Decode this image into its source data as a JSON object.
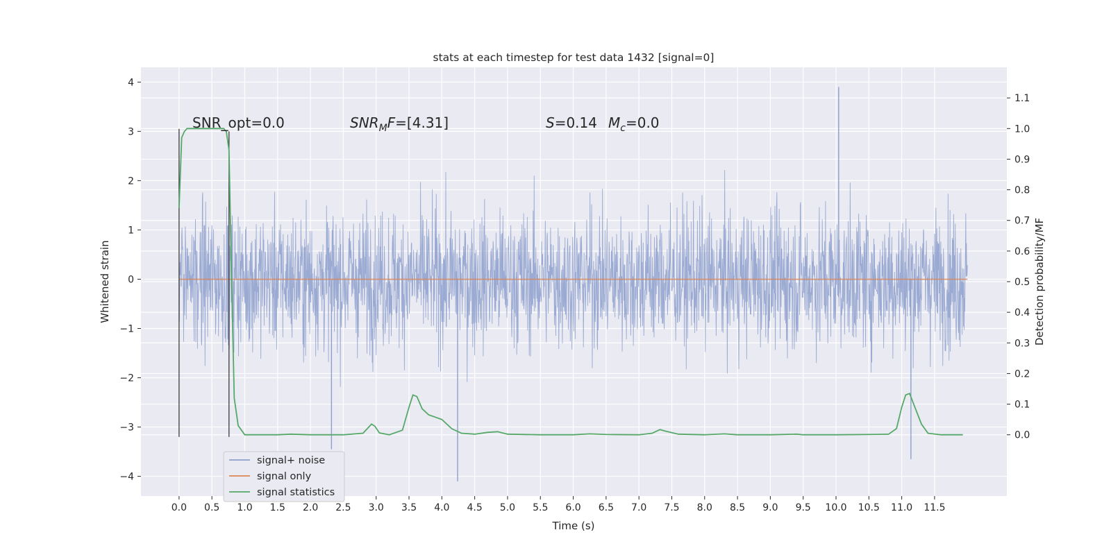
{
  "chart_data": {
    "type": "line",
    "title": "stats at each timestep for test data 1432 [signal=0]",
    "xlabel": "Time (s)",
    "ylabel_left": "Whitened strain",
    "ylabel_right": "Detection probability/MF",
    "xlim": [
      -0.58,
      12.6
    ],
    "ylim_left": [
      -4.4,
      4.3
    ],
    "ylim_right": [
      -0.2,
      1.2
    ],
    "x_ticks": [
      0.0,
      0.5,
      1.0,
      1.5,
      2.0,
      2.5,
      3.0,
      3.5,
      4.0,
      4.5,
      5.0,
      5.5,
      6.0,
      6.5,
      7.0,
      7.5,
      8.0,
      8.5,
      9.0,
      9.5,
      10.0,
      10.5,
      11.0,
      11.5
    ],
    "x_tick_labels": [
      "0.0",
      "0.5",
      "1.0",
      "1.5",
      "2.0",
      "2.5",
      "3.0",
      "3.5",
      "4.0",
      "4.5",
      "5.0",
      "5.5",
      "6.0",
      "6.5",
      "7.0",
      "7.5",
      "8.0",
      "8.5",
      "9.0",
      "9.5",
      "10.0",
      "10.5",
      "11.0",
      "11.5"
    ],
    "y_left_ticks": [
      4,
      3,
      2,
      1,
      0,
      -1,
      -2,
      -3,
      -4
    ],
    "y_left_tick_labels": [
      "4",
      "3",
      "2",
      "1",
      "0",
      "−1",
      "−2",
      "−3",
      "−4"
    ],
    "y_right_ticks": [
      1.1,
      1.0,
      0.9,
      0.8,
      0.7,
      0.6,
      0.5,
      0.4,
      0.3,
      0.2,
      0.1,
      0.0
    ],
    "y_right_tick_labels": [
      "1.1",
      "1.0",
      "0.9",
      "0.8",
      "0.7",
      "0.6",
      "0.5",
      "0.4",
      "0.3",
      "0.2",
      "0.1",
      "0.0"
    ],
    "grid": true,
    "legend_position": "lower-left",
    "noise_extent": {
      "x_start": 0.0,
      "x_end": 12.0,
      "typical_low": -1.8,
      "typical_high": 1.8,
      "notable_peaks": [
        {
          "x": 10.04,
          "y": 3.9
        },
        {
          "x": 4.24,
          "y": -4.1
        },
        {
          "x": 11.14,
          "y": -3.65
        },
        {
          "x": 2.32,
          "y": -3.45
        }
      ]
    },
    "series": [
      {
        "name": "signal+ noise",
        "color": "#8c9fcc",
        "kind": "noise"
      },
      {
        "name": "signal only",
        "color": "#dd8452",
        "x": [
          0.0,
          12.0
        ],
        "y": [
          0.0,
          0.0
        ]
      },
      {
        "name": "signal statistics",
        "color": "#55a868",
        "axis": "right",
        "x": [
          0.0,
          0.04,
          0.08,
          0.12,
          0.18,
          0.25,
          0.35,
          0.5,
          0.6,
          0.68,
          0.72,
          0.76,
          0.8,
          0.84,
          0.9,
          1.0,
          1.5,
          1.7,
          2.0,
          2.5,
          2.8,
          2.93,
          2.98,
          3.05,
          3.2,
          3.4,
          3.5,
          3.56,
          3.62,
          3.7,
          3.8,
          4.0,
          4.15,
          4.3,
          4.5,
          4.7,
          4.85,
          5.0,
          5.5,
          6.0,
          6.25,
          6.5,
          7.0,
          7.2,
          7.32,
          7.4,
          7.6,
          8.0,
          8.3,
          8.5,
          9.0,
          9.4,
          9.5,
          10.0,
          10.5,
          10.8,
          10.92,
          11.0,
          11.06,
          11.12,
          11.2,
          11.3,
          11.4,
          11.6,
          11.93
        ],
        "y": [
          0.74,
          0.97,
          0.99,
          1.0,
          1.0,
          1.0,
          1.0,
          1.0,
          1.0,
          1.0,
          0.99,
          0.93,
          0.5,
          0.12,
          0.03,
          0.0,
          0.0,
          0.002,
          0.0,
          0.0,
          0.005,
          0.035,
          0.028,
          0.006,
          0.0,
          0.015,
          0.09,
          0.13,
          0.125,
          0.085,
          0.065,
          0.05,
          0.02,
          0.005,
          0.002,
          0.008,
          0.01,
          0.002,
          0.0,
          0.0,
          0.003,
          0.001,
          0.0,
          0.005,
          0.017,
          0.012,
          0.002,
          0.0,
          0.003,
          0.0,
          0.0,
          0.002,
          0.0,
          0.0,
          0.001,
          0.002,
          0.02,
          0.09,
          0.13,
          0.135,
          0.09,
          0.035,
          0.005,
          0.0,
          0.0
        ]
      }
    ],
    "vertical_lines": [
      {
        "x": 0.0,
        "y_low": -3.2,
        "y_high": 3.05
      },
      {
        "x": 0.76,
        "y_low": -3.2,
        "y_high": 3.0
      }
    ],
    "annotations": {
      "snr_opt": "SNR_opt=0.0",
      "snr_mf_main": "SNR",
      "snr_mf_sub": "M",
      "snr_mf_tail": "F=[4.31]",
      "s_var": "S",
      "s_value": "=0.14",
      "mc_var": "M",
      "mc_sub": "c",
      "mc_value": "=0.0"
    }
  },
  "colors": {
    "axes_bg": "#eaeaf2",
    "grid": "#ffffff",
    "legend_bg": "#eaeaf2",
    "legend_border": "#cccccc"
  }
}
